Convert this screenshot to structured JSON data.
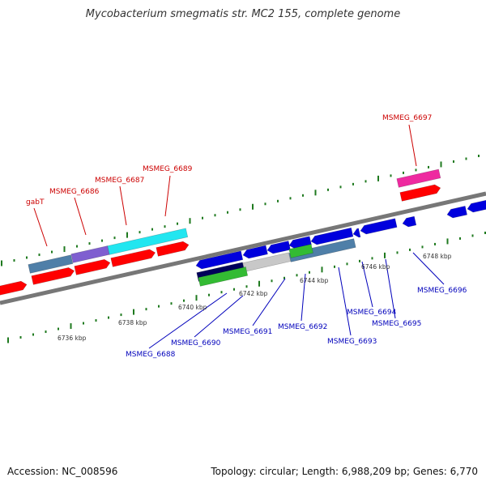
{
  "title": "Mycobacterium smegmatis str. MC2 155, complete genome",
  "footer": {
    "accession": "Accession: NC_008596",
    "summary": "Topology: circular; Length: 6,988,209 bp; Genes: 6,770"
  },
  "colors": {
    "backbone": "#7a7a7a",
    "tick": "#1f7a1f",
    "red_label": "#cc0000",
    "blue_label": "#0000bb",
    "gene_red": "#ff0000",
    "gene_blue": "#0000dd",
    "gene_steel": "#4f7fa8",
    "gene_violet": "#7f5fd0",
    "gene_cyan": "#22e6f0",
    "gene_magenta": "#ee2aa0",
    "gene_navy": "#00005a",
    "gene_grey": "#c8c8c8",
    "gene_green": "#33bb33"
  },
  "scale_labels": [
    "6736 kbp",
    "6738 kbp",
    "6740 kbp",
    "6742 kbp",
    "6744 kbp",
    "6746 kbp",
    "6748 kbp"
  ],
  "gene_labels_top": [
    "gabT",
    "MSMEG_6686",
    "MSMEG_6687",
    "MSMEG_6689",
    "MSMEG_6697"
  ],
  "gene_labels_bottom": [
    "MSMEG_6688",
    "MSMEG_6690",
    "MSMEG_6691",
    "MSMEG_6692",
    "MSMEG_6693",
    "MSMEG_6694",
    "MSMEG_6695",
    "MSMEG_6696"
  ]
}
